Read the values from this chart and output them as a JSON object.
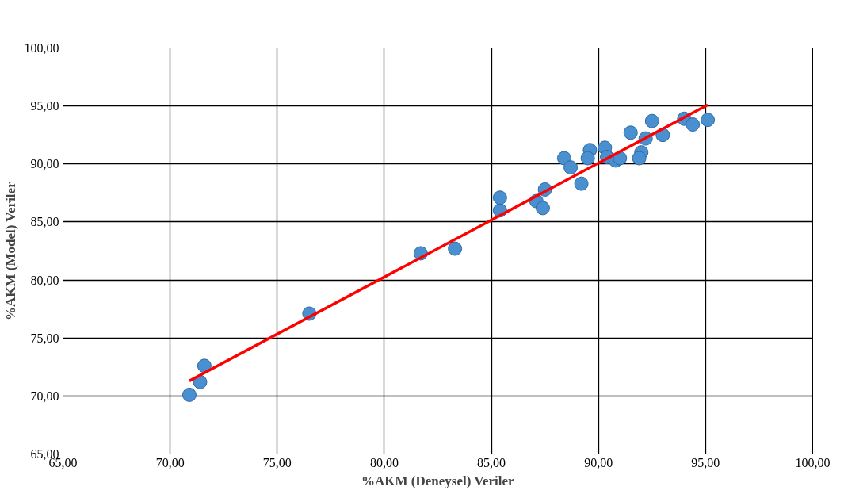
{
  "chart_data": {
    "type": "scatter",
    "xlabel": "%AKM (Deneysel) Veriler",
    "ylabel": "%AKM (Model) Veriler",
    "xlim": [
      65,
      100
    ],
    "ylim": [
      65,
      100
    ],
    "xticks": [
      {
        "value": 65,
        "label": "65,00"
      },
      {
        "value": 70,
        "label": "70,00"
      },
      {
        "value": 75,
        "label": "75,00"
      },
      {
        "value": 80,
        "label": "80,00"
      },
      {
        "value": 85,
        "label": "85,00"
      },
      {
        "value": 90,
        "label": "90,00"
      },
      {
        "value": 95,
        "label": "95,00"
      },
      {
        "value": 100,
        "label": "100,00"
      }
    ],
    "yticks": [
      {
        "value": 65,
        "label": "65,00"
      },
      {
        "value": 70,
        "label": "70,00"
      },
      {
        "value": 75,
        "label": "75,00"
      },
      {
        "value": 80,
        "label": "80,00"
      },
      {
        "value": 85,
        "label": "85,00"
      },
      {
        "value": 90,
        "label": "90,00"
      },
      {
        "value": 95,
        "label": "95,00"
      },
      {
        "value": 100,
        "label": "100,00"
      }
    ],
    "grid": true,
    "series": [
      {
        "marker": "circle",
        "color": "#4a90d0",
        "x": [
          70.9,
          71.4,
          71.6,
          76.5,
          81.7,
          83.3,
          85.4,
          85.4,
          87.1,
          87.4,
          87.5,
          88.4,
          88.7,
          89.2,
          89.6,
          89.5,
          90.3,
          90.4,
          90.8,
          91.0,
          91.5,
          92.0,
          91.9,
          92.2,
          92.5,
          93.0,
          94.0,
          94.4,
          95.1
        ],
        "values": [
          70.1,
          71.2,
          72.6,
          77.1,
          82.3,
          82.7,
          86.0,
          87.1,
          86.8,
          86.2,
          87.8,
          90.5,
          89.7,
          88.3,
          91.2,
          90.5,
          91.4,
          90.6,
          90.3,
          90.5,
          92.7,
          91.0,
          90.5,
          92.2,
          93.7,
          92.5,
          93.9,
          93.4,
          93.8
        ]
      },
      {
        "type": "line",
        "color": "#ff0000",
        "x": [
          70.9,
          95.1
        ],
        "values": [
          71.3,
          95.1
        ],
        "line_style": "solid"
      }
    ]
  }
}
